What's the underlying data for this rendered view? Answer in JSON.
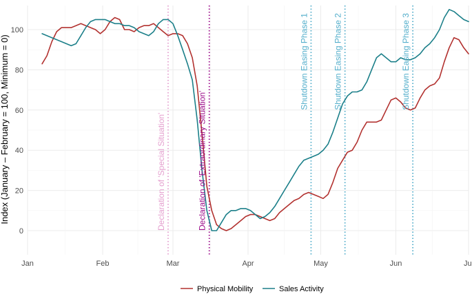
{
  "chart_data": {
    "type": "line",
    "title": "",
    "xlabel": "",
    "ylabel": "Index (January – February = 100, Minimum = 0)",
    "x_tick_labels": [
      "Jan",
      "Feb",
      "Mar",
      "Apr",
      "May",
      "Jun",
      "Jul"
    ],
    "x_tick_days": [
      0,
      31,
      60,
      91,
      121,
      152,
      182
    ],
    "y_ticks": [
      0,
      20,
      40,
      60,
      80,
      100
    ],
    "xlim": [
      0,
      182
    ],
    "ylim": [
      -12,
      112
    ],
    "grid": true,
    "legend_position": "bottom",
    "series": [
      {
        "name": "Physical Mobility",
        "color": "#b2312f",
        "x": [
          6,
          8,
          10,
          12,
          14,
          16,
          18,
          20,
          22,
          24,
          26,
          28,
          30,
          32,
          34,
          36,
          38,
          40,
          42,
          44,
          46,
          48,
          50,
          52,
          54,
          56,
          58,
          60,
          62,
          64,
          66,
          68,
          70,
          72,
          74,
          76,
          78,
          80,
          82,
          84,
          86,
          88,
          90,
          92,
          94,
          96,
          98,
          100,
          102,
          104,
          106,
          108,
          110,
          112,
          114,
          116,
          118,
          120,
          122,
          124,
          126,
          128,
          130,
          132,
          134,
          136,
          138,
          140,
          142,
          144,
          146,
          148,
          150,
          152,
          154,
          156,
          158,
          160,
          162,
          164,
          166,
          168,
          170,
          172,
          174,
          176,
          178,
          180,
          182
        ],
        "y": [
          83,
          87,
          94,
          99,
          101,
          101,
          101,
          102,
          103,
          102,
          101,
          100,
          98,
          100,
          104,
          106,
          105,
          100,
          100,
          99,
          101,
          102,
          102,
          103,
          101,
          99,
          97,
          98,
          98,
          97,
          93,
          86,
          72,
          48,
          22,
          10,
          3,
          1,
          0,
          1,
          3,
          5,
          7,
          8,
          8,
          7,
          6,
          5,
          6,
          9,
          11,
          13,
          15,
          16,
          18,
          19,
          18,
          17,
          16,
          18,
          24,
          31,
          35,
          39,
          40,
          44,
          50,
          54,
          54,
          54,
          55,
          60,
          65,
          66,
          64,
          61,
          60,
          61,
          66,
          70,
          72,
          73,
          76,
          84,
          91,
          96,
          95,
          91,
          88
        ]
      },
      {
        "name": "Sales Activity",
        "color": "#1b7f89",
        "x": [
          6,
          10,
          14,
          18,
          20,
          22,
          24,
          26,
          28,
          30,
          32,
          34,
          36,
          38,
          40,
          42,
          44,
          46,
          48,
          50,
          52,
          54,
          56,
          58,
          60,
          62,
          64,
          66,
          68,
          70,
          72,
          74,
          76,
          78,
          80,
          82,
          84,
          86,
          88,
          90,
          92,
          94,
          96,
          98,
          100,
          102,
          104,
          106,
          108,
          110,
          112,
          114,
          116,
          118,
          120,
          122,
          124,
          126,
          128,
          130,
          132,
          134,
          136,
          138,
          140,
          142,
          144,
          146,
          148,
          150,
          152,
          154,
          156,
          158,
          160,
          162,
          164,
          166,
          168,
          170,
          172,
          174,
          176,
          178,
          180,
          182
        ],
        "y": [
          98,
          96,
          94,
          92,
          93,
          97,
          101,
          104,
          105,
          105,
          105,
          104,
          103,
          103,
          102,
          102,
          101,
          99,
          98,
          97,
          99,
          103,
          105,
          105,
          103,
          97,
          90,
          83,
          75,
          55,
          30,
          10,
          0,
          0,
          4,
          8,
          10,
          10,
          11,
          11,
          10,
          8,
          6,
          7,
          9,
          12,
          16,
          20,
          24,
          28,
          32,
          35,
          36,
          37,
          38,
          40,
          43,
          49,
          56,
          63,
          67,
          69,
          69,
          70,
          74,
          80,
          86,
          88,
          86,
          84,
          84,
          86,
          85,
          85,
          86,
          88,
          91,
          93,
          96,
          100,
          106,
          110,
          109,
          107,
          105,
          104
        ]
      }
    ],
    "events": [
      {
        "label": "Declaration of 'Special Situation'",
        "x": 58,
        "color": "#e5a0cf"
      },
      {
        "label": "Declaration of 'Extraordinary Situation'",
        "x": 75,
        "color": "#9c0c8a"
      },
      {
        "label": "Shutdown Easing Phase 1",
        "x": 117,
        "color": "#53aecb"
      },
      {
        "label": "Shutdown Easing Phase 2",
        "x": 131,
        "color": "#53aecb"
      },
      {
        "label": "Shutdown Easing Phase 3",
        "x": 159,
        "color": "#53aecb"
      }
    ]
  }
}
